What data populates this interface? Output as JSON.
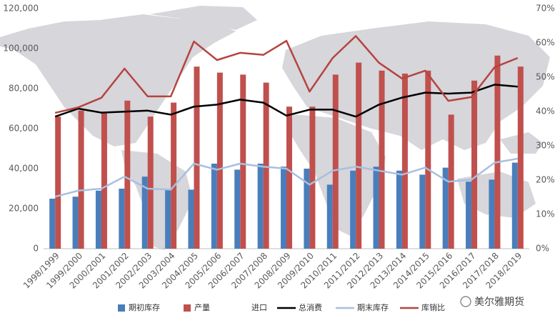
{
  "chart_data": {
    "type": "bar-line",
    "categories": [
      "1998/1999",
      "1999/2000",
      "2000/2001",
      "2001/2002",
      "2002/2003",
      "2003/2004",
      "2004/2005",
      "2005/2006",
      "2006/2007",
      "2007/2008",
      "2008/2009",
      "2009/2010",
      "2010/2011",
      "2011/2012",
      "2012/2013",
      "2013/2014",
      "2014/2015",
      "2015/2016",
      "2016/2017",
      "2017/2018",
      "2018/2019"
    ],
    "ylim": [
      0,
      120000
    ],
    "yticks": [
      0,
      {
        "value": 20000,
        "label": "20,000"
      },
      {
        "value": 40000,
        "label": "40,000"
      },
      {
        "value": 60000,
        "label": "60,000"
      },
      {
        "value": 80000,
        "label": "80,000"
      },
      {
        "value": 100000,
        "label": "100,000"
      },
      {
        "value": 120000,
        "label": "120,000"
      }
    ],
    "y2lim": [
      0,
      70
    ],
    "y2ticks": [
      {
        "value": 0,
        "label": "0%"
      },
      {
        "value": 10,
        "label": "10%"
      },
      {
        "value": 20,
        "label": "20%"
      },
      {
        "value": 30,
        "label": "30%"
      },
      {
        "value": 40,
        "label": "40%"
      },
      {
        "value": 50,
        "label": "50%"
      },
      {
        "value": 60,
        "label": "60%"
      },
      {
        "value": 70,
        "label": "70%"
      }
    ],
    "series": [
      {
        "name": "期初库存",
        "kind": "bar",
        "color": "#4a7ebb",
        "values": [
          25000,
          26000,
          29000,
          30000,
          36000,
          30000,
          29500,
          42500,
          39500,
          42500,
          41000,
          40000,
          32000,
          39000,
          41000,
          39000,
          37000,
          40500,
          33500,
          34500,
          43000
        ]
      },
      {
        "name": "产量",
        "kind": "bar",
        "color": "#c0504d",
        "values": [
          66000,
          69000,
          68000,
          74000,
          66000,
          73000,
          91000,
          88000,
          87000,
          83000,
          71000,
          71000,
          87000,
          93000,
          89000,
          87500,
          89000,
          67000,
          84000,
          96500,
          91000
        ]
      },
      {
        "name": "进口",
        "kind": "bar",
        "color": "none",
        "values": [
          null,
          null,
          null,
          null,
          null,
          null,
          null,
          null,
          null,
          null,
          null,
          null,
          null,
          null,
          null,
          null,
          null,
          null,
          null,
          null,
          null
        ]
      },
      {
        "name": "总消费",
        "kind": "line",
        "color": "#000000",
        "values": [
          66000,
          70000,
          68000,
          68500,
          69000,
          67000,
          71000,
          72000,
          74500,
          73000,
          66500,
          69500,
          69500,
          66000,
          72000,
          75500,
          78000,
          77500,
          78000,
          82000,
          81000
        ]
      },
      {
        "name": "期末库存",
        "kind": "line",
        "color": "#a9bfe0",
        "values": [
          26000,
          29000,
          30000,
          36000,
          30000,
          29500,
          42500,
          39500,
          42500,
          41000,
          40000,
          32000,
          39000,
          41000,
          39000,
          37000,
          40500,
          33500,
          34500,
          43000,
          45000
        ]
      },
      {
        "name": "库销比",
        "kind": "line",
        "axis": "y2",
        "color": "#b5443f",
        "values": [
          39.6,
          41.2,
          44,
          52.5,
          44.4,
          44.4,
          60.4,
          55,
          57.1,
          56.5,
          60.6,
          45.8,
          55.6,
          62,
          54.2,
          49.6,
          51.9,
          43.1,
          44.2,
          52.9,
          55.6
        ]
      }
    ]
  },
  "watermark": "美尔雅期货"
}
